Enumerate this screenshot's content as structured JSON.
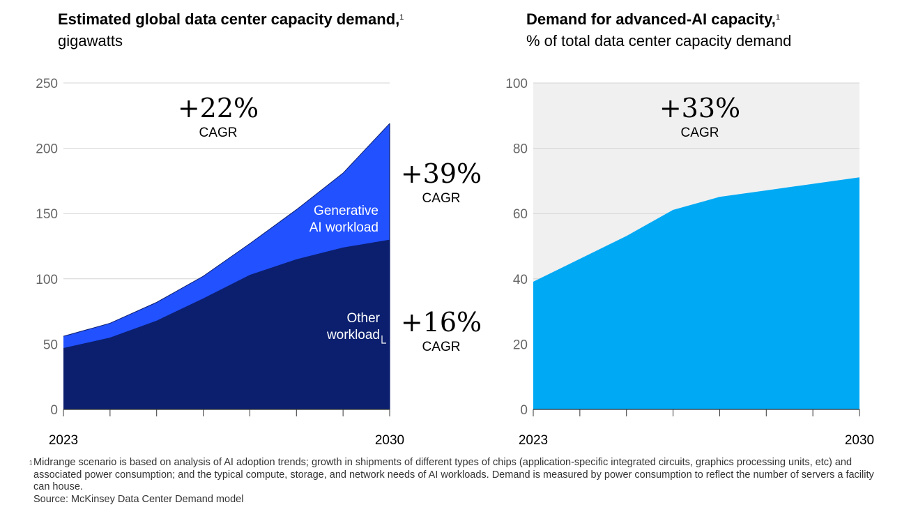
{
  "left_title": {
    "bold": "Estimated global data center capacity demand,",
    "sup": "1",
    "rest": " gigawatts"
  },
  "right_title": {
    "bold": "Demand for advanced-AI capacity,",
    "sup": "1",
    "rest": "% of total data center capacity demand"
  },
  "chart_data": [
    {
      "type": "area",
      "title": "Estimated global data center capacity demand, gigawatts",
      "x": [
        2023,
        2024,
        2025,
        2026,
        2027,
        2028,
        2029,
        2030
      ],
      "ylim": [
        0,
        250
      ],
      "yticks": [
        0,
        50,
        100,
        150,
        200,
        250
      ],
      "xlabels": [
        "2023",
        "2030"
      ],
      "stacked": true,
      "series": [
        {
          "name": "Other workload",
          "label_lines": [
            "Other",
            "workload"
          ],
          "color": "#0b1f6e",
          "values": [
            47,
            55,
            68,
            85,
            103,
            115,
            124,
            130
          ]
        },
        {
          "name": "Generative AI workload",
          "label_lines": [
            "Generative",
            "AI workload"
          ],
          "color": "#2251ff",
          "values": [
            9,
            11,
            14,
            17,
            24,
            38,
            57,
            89
          ]
        }
      ],
      "totals": [
        56,
        66,
        82,
        102,
        127,
        153,
        181,
        219
      ],
      "annotations": [
        {
          "big": "+22%",
          "small": "CAGR",
          "refers_to": "total"
        },
        {
          "big": "+39%",
          "small": "CAGR",
          "refers_to": "Generative AI workload"
        },
        {
          "big": "+16%",
          "small": "CAGR",
          "refers_to": "Other workload"
        }
      ]
    },
    {
      "type": "area",
      "title": "Demand for advanced-AI capacity, % of total data center capacity demand",
      "x": [
        2023,
        2024,
        2025,
        2026,
        2027,
        2028,
        2029,
        2030
      ],
      "ylim": [
        0,
        100
      ],
      "yticks": [
        0,
        20,
        40,
        60,
        80,
        100
      ],
      "xlabels": [
        "2023",
        "2030"
      ],
      "series": [
        {
          "name": "Advanced-AI share",
          "color": "#00a9f4",
          "values": [
            39,
            46,
            53,
            61,
            65,
            67,
            69,
            71
          ]
        }
      ],
      "background_color": "#f0f0f0",
      "annotations": [
        {
          "big": "+33%",
          "small": "CAGR"
        }
      ]
    }
  ],
  "footnote": {
    "sup": "1",
    "text": "Midrange scenario is based on analysis of AI adoption trends; growth in shipments of different types of chips (application-specific integrated circuits, graphics processing units, etc) and associated power consumption; and the typical compute, storage, and network needs of AI workloads. Demand is measured by power consumption to reflect the number of servers a facility can house.",
    "source": "Source: McKinsey Data Center Demand model"
  }
}
